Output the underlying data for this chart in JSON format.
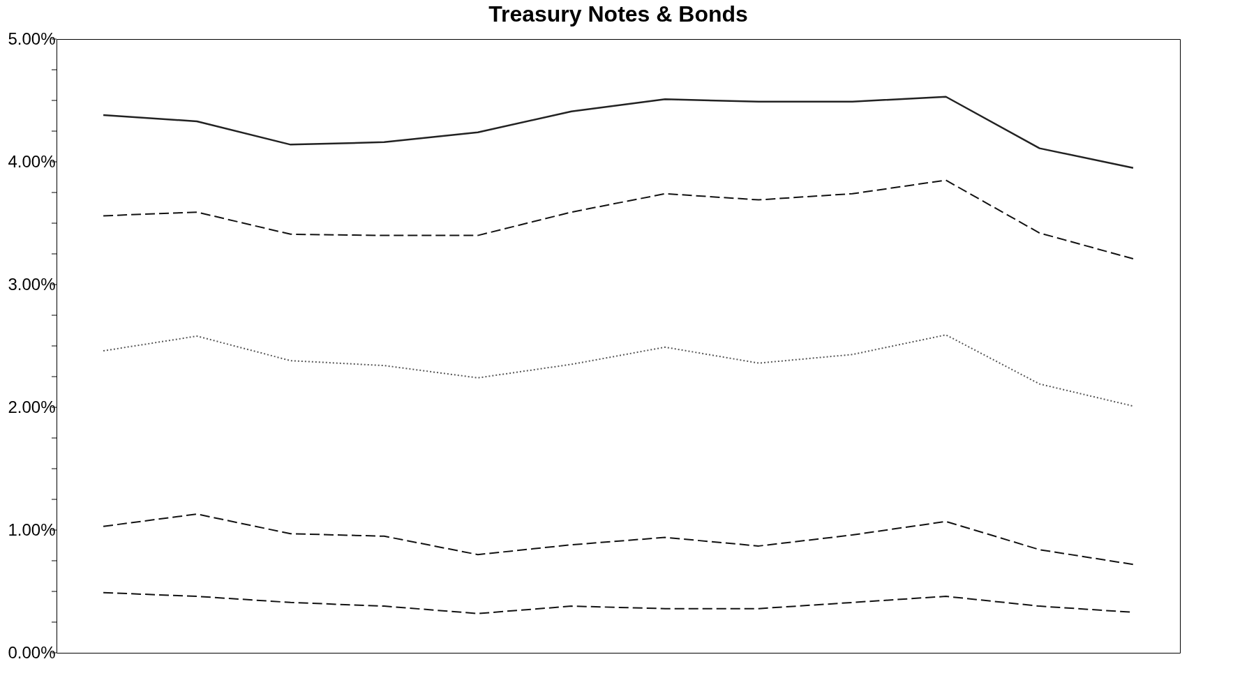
{
  "chart_data": {
    "type": "line",
    "title": "Treasury Notes & Bonds",
    "categories": [
      null,
      null,
      null,
      null,
      null,
      null,
      null,
      null,
      null,
      null,
      null,
      null
    ],
    "series": [
      {
        "color": "#222222",
        "line_style": "solid",
        "values": [
          4.38,
          4.33,
          4.14,
          4.16,
          4.24,
          4.41,
          4.51,
          4.49,
          4.49,
          4.53,
          4.11,
          3.95
        ]
      },
      {
        "color": "#111111",
        "line_style": "dashed",
        "values": [
          3.56,
          3.59,
          3.41,
          3.4,
          3.4,
          3.59,
          3.74,
          3.69,
          3.74,
          3.85,
          3.42,
          3.21
        ]
      },
      {
        "color": "#555555",
        "line_style": "dotted",
        "values": [
          2.46,
          2.58,
          2.38,
          2.34,
          2.24,
          2.35,
          2.49,
          2.36,
          2.43,
          2.59,
          2.19,
          2.01
        ]
      },
      {
        "color": "#111111",
        "line_style": "dashed",
        "values": [
          1.03,
          1.13,
          0.97,
          0.95,
          0.8,
          0.88,
          0.94,
          0.87,
          0.96,
          1.07,
          0.84,
          0.72
        ]
      },
      {
        "color": "#111111",
        "line_style": "dashed",
        "values": [
          0.49,
          0.46,
          0.41,
          0.38,
          0.32,
          0.38,
          0.36,
          0.36,
          0.41,
          0.46,
          0.38,
          0.33
        ]
      }
    ],
    "ylim": [
      0,
      5
    ],
    "yticks": [
      {
        "value": 0,
        "label": "0.00%"
      },
      {
        "value": 0.25,
        "label": null
      },
      {
        "value": 0.5,
        "label": null
      },
      {
        "value": 0.75,
        "label": null
      },
      {
        "value": 1,
        "label": "1.00%"
      },
      {
        "value": 1.25,
        "label": null
      },
      {
        "value": 1.5,
        "label": null
      },
      {
        "value": 1.75,
        "label": null
      },
      {
        "value": 2,
        "label": "2.00%"
      },
      {
        "value": 2.25,
        "label": null
      },
      {
        "value": 2.5,
        "label": null
      },
      {
        "value": 2.75,
        "label": null
      },
      {
        "value": 3,
        "label": "3.00%"
      },
      {
        "value": 3.25,
        "label": null
      },
      {
        "value": 3.5,
        "label": null
      },
      {
        "value": 3.75,
        "label": null
      },
      {
        "value": 4,
        "label": "4.00%"
      },
      {
        "value": 4.25,
        "label": null
      },
      {
        "value": 4.5,
        "label": null
      },
      {
        "value": 4.75,
        "label": null
      },
      {
        "value": 5,
        "label": "5.00%"
      }
    ],
    "tick_labels": "y",
    "grid": false,
    "marker": "none"
  }
}
